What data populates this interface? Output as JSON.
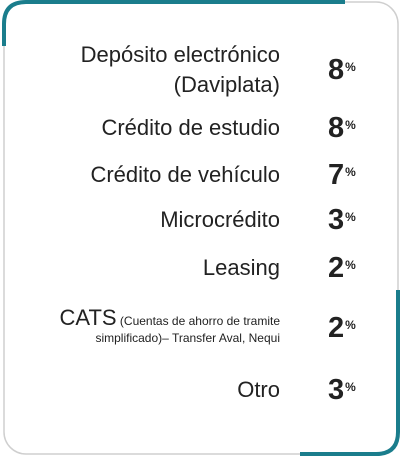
{
  "unit": "%",
  "items": [
    {
      "label_lines": [
        "Depósito electrónico",
        "(Daviplata)"
      ],
      "value": 8
    },
    {
      "label_lines": [
        "Crédito de estudio"
      ],
      "value": 8
    },
    {
      "label_lines": [
        "Crédito de vehículo"
      ],
      "value": 7
    },
    {
      "label_lines": [
        "Microcrédito"
      ],
      "value": 3
    },
    {
      "label_lines": [
        "Leasing"
      ],
      "value": 2
    },
    {
      "label_lines": [
        "CATS"
      ],
      "note": "(Cuentas de ahorro de tramite simplificado)– Transfer Aval, Nequi",
      "value": 2
    },
    {
      "label_lines": [
        "Otro"
      ],
      "value": 3
    }
  ]
}
